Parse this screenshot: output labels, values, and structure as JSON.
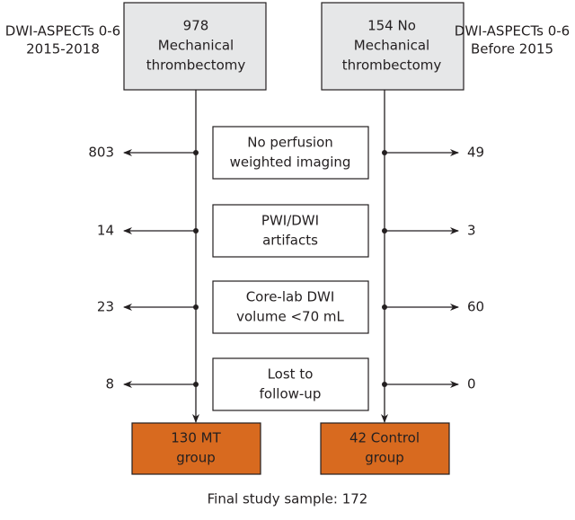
{
  "sources": [
    {
      "side_label": [
        "DWI-ASPECTs 0-6",
        "2015-2018"
      ],
      "box": [
        "978",
        "Mechanical",
        "thrombectomy"
      ]
    },
    {
      "side_label": [
        "DWI-ASPECTs 0-6",
        "Before 2015"
      ],
      "box": [
        "154 No",
        "Mechanical",
        "thrombectomy"
      ]
    }
  ],
  "exclusions": [
    {
      "reason": [
        "No perfusion",
        "weighted imaging"
      ],
      "mt": 803,
      "control": 49
    },
    {
      "reason": [
        "PWI/DWI",
        "artifacts"
      ],
      "mt": 14,
      "control": 3
    },
    {
      "reason": [
        "Core-lab DWI",
        "volume <70 mL"
      ],
      "mt": 23,
      "control": 60
    },
    {
      "reason": [
        "Lost to",
        "follow-up"
      ],
      "mt": 8,
      "control": 0
    }
  ],
  "groups": [
    [
      "130 MT",
      "group"
    ],
    [
      "42 Control",
      "group"
    ]
  ],
  "footer": "Final study sample: 172"
}
